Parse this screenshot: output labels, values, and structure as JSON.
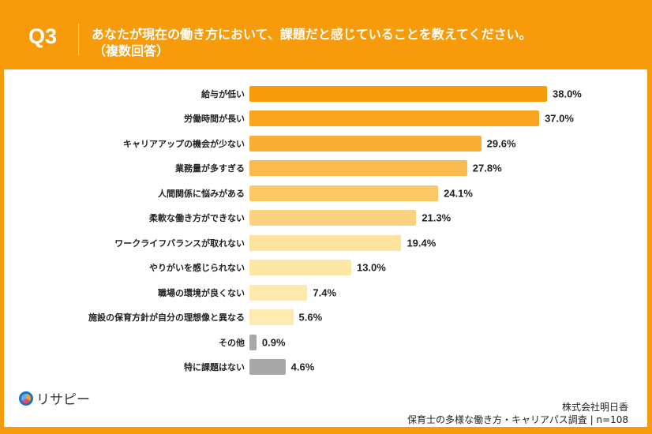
{
  "header": {
    "q": "Q3",
    "title": "あなたが現在の働き方において、課題だと感じていることを教えてください。",
    "subtitle": "（複数回答）"
  },
  "chart_data": {
    "type": "bar",
    "title": "あなたが現在の働き方において、課題だと感じていることを教えてください。（複数回答）",
    "categories": [
      "給与が低い",
      "労働時間が長い",
      "キャリアアップの機会が少ない",
      "業務量が多すぎる",
      "人間関係に悩みがある",
      "柔軟な働き方ができない",
      "ワークライフバランスが取れない",
      "やりがいを感じられない",
      "職場の環境が良くない",
      "施設の保育方針が自分の理想像と異なる",
      "その他",
      "特に課題はない"
    ],
    "values": [
      38.0,
      37.0,
      29.6,
      27.8,
      24.1,
      21.3,
      19.4,
      13.0,
      7.4,
      5.6,
      0.9,
      4.6
    ],
    "labels": [
      "38.0%",
      "37.0%",
      "29.6%",
      "27.8%",
      "24.1%",
      "21.3%",
      "19.4%",
      "13.0%",
      "7.4%",
      "5.6%",
      "0.9%",
      "4.6%"
    ],
    "colors": [
      "#F89B0B",
      "#F9A41F",
      "#FAAE35",
      "#FBBA4D",
      "#FCC866",
      "#FDD27E",
      "#FDE39D",
      "#FDE6A6",
      "#FEE9AF",
      "#FEEAB3",
      "#A8A8A8",
      "#A8A8A8"
    ],
    "xlim": [
      0,
      38
    ]
  },
  "logo": {
    "text": "リサピー"
  },
  "footer": {
    "company": "株式会社明日香",
    "survey": "保育士の多様な働き方・キャリアパス調査 | n=108"
  }
}
